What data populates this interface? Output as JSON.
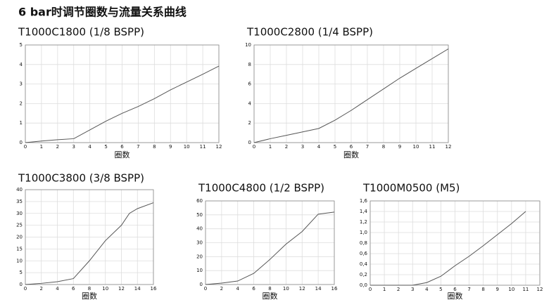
{
  "title": "6 bar时调节圈数与流量关系曲线",
  "chart_data": [
    {
      "type": "line",
      "title": "T1000C1800 (1/8 BSPP)",
      "x_label": "圈数",
      "x": [
        0,
        1,
        2,
        3,
        4,
        5,
        6,
        7,
        8,
        9,
        10,
        11,
        12
      ],
      "series": [
        {
          "color": "#555555",
          "values": [
            0,
            0.08,
            0.15,
            0.2,
            0.65,
            1.1,
            1.5,
            1.85,
            2.25,
            2.7,
            3.1,
            3.5,
            3.92
          ]
        }
      ],
      "xlim": [
        0,
        12
      ],
      "xticks": [
        0,
        1,
        2,
        3,
        4,
        5,
        6,
        7,
        8,
        9,
        10,
        11,
        12
      ],
      "ylim": [
        0,
        5
      ],
      "yticks": [
        0,
        1,
        2,
        3,
        4,
        5
      ],
      "grid": true
    },
    {
      "type": "line",
      "title": "T1000C2800 (1/4 BSPP)",
      "x_label": "圈数",
      "x": [
        0,
        1,
        2,
        3,
        4,
        5,
        6,
        7,
        8,
        9,
        10,
        11,
        12
      ],
      "series": [
        {
          "color": "#555555",
          "values": [
            0,
            0.4,
            0.75,
            1.1,
            1.45,
            2.3,
            3.3,
            4.4,
            5.5,
            6.6,
            7.6,
            8.6,
            9.6
          ]
        }
      ],
      "xlim": [
        0,
        12
      ],
      "xticks": [
        0,
        1,
        2,
        3,
        4,
        5,
        6,
        7,
        8,
        9,
        10,
        11,
        12
      ],
      "ylim": [
        0,
        10
      ],
      "yticks": [
        0,
        2,
        4,
        6,
        8,
        10
      ],
      "grid": true
    },
    {
      "type": "line",
      "title": "T1000C3800 (3/8 BSPP)",
      "x_label": "圈数",
      "x": [
        0,
        2,
        4,
        6,
        8,
        10,
        12,
        13,
        14,
        16
      ],
      "series": [
        {
          "color": "#555555",
          "values": [
            0,
            0.5,
            1.2,
            2.5,
            10,
            18.5,
            25,
            30,
            32,
            34.5
          ]
        }
      ],
      "xlim": [
        0,
        16
      ],
      "xticks": [
        0,
        2,
        4,
        6,
        8,
        10,
        12,
        14,
        16
      ],
      "ylim": [
        0,
        40
      ],
      "yticks": [
        0,
        5,
        10,
        15,
        20,
        25,
        30,
        35,
        40
      ],
      "grid": true
    },
    {
      "type": "line",
      "title": "T1000C4800 (1/2 BSPP)",
      "x_label": "圈数",
      "x": [
        0,
        2,
        4,
        6,
        8,
        10,
        12,
        14,
        16
      ],
      "series": [
        {
          "color": "#555555",
          "values": [
            0,
            1,
            2.5,
            8,
            18,
            29,
            38,
            50.5,
            52
          ]
        }
      ],
      "xlim": [
        0,
        16
      ],
      "xticks": [
        0,
        2,
        4,
        6,
        8,
        10,
        12,
        14,
        16
      ],
      "ylim": [
        0,
        60
      ],
      "yticks": [
        0,
        10,
        20,
        30,
        40,
        50,
        60
      ],
      "grid": true
    },
    {
      "type": "line",
      "title": "T1000M0500 (M5)",
      "x_label": "圈数",
      "x": [
        0,
        3,
        4,
        5,
        6,
        7,
        8,
        9,
        10,
        11
      ],
      "series": [
        {
          "color": "#555555",
          "values": [
            0,
            0,
            0.05,
            0.17,
            0.37,
            0.55,
            0.75,
            0.96,
            1.17,
            1.4
          ]
        }
      ],
      "xlim": [
        0,
        12
      ],
      "xticks": [
        0,
        1,
        2,
        3,
        4,
        5,
        6,
        7,
        8,
        9,
        10,
        11,
        12
      ],
      "ylim": [
        0,
        1.6
      ],
      "yticks": [
        {
          "value": 0,
          "label": "0,0"
        },
        {
          "value": 0.2,
          "label": "0,2"
        },
        {
          "value": 0.4,
          "label": "0,4"
        },
        {
          "value": 0.6,
          "label": "0,6"
        },
        {
          "value": 0.8,
          "label": "0,8"
        },
        {
          "value": 1,
          "label": "1,0"
        },
        {
          "value": 1.2,
          "label": "1,2"
        },
        {
          "value": 1.4,
          "label": "1,4"
        },
        {
          "value": 1.6,
          "label": "1,6"
        }
      ],
      "grid": true
    }
  ]
}
